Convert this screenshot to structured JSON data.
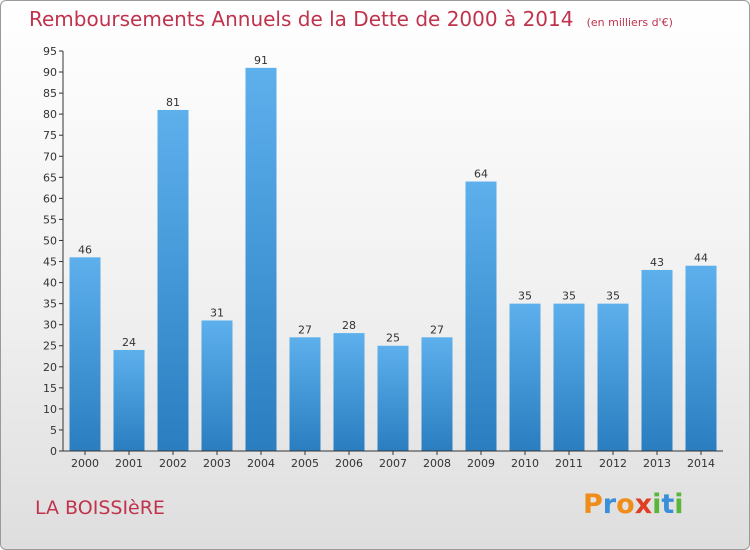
{
  "chart_data": {
    "type": "bar",
    "title": "Remboursements Annuels de la Dette de 2000 à 2014",
    "subtitle": "(en milliers d'€)",
    "xlabel": "",
    "ylabel": "",
    "categories": [
      "2000",
      "2001",
      "2002",
      "2003",
      "2004",
      "2005",
      "2006",
      "2007",
      "2008",
      "2009",
      "2010",
      "2011",
      "2012",
      "2013",
      "2014"
    ],
    "values": [
      46,
      24,
      81,
      31,
      91,
      27,
      28,
      25,
      27,
      64,
      35,
      35,
      35,
      43,
      44
    ],
    "ylim": [
      0,
      95
    ],
    "yticks": [
      0,
      5,
      10,
      15,
      20,
      25,
      30,
      35,
      40,
      45,
      50,
      55,
      60,
      65,
      70,
      75,
      80,
      85,
      90,
      95
    ],
    "grid": false,
    "bar_color": "#3f93d4",
    "show_value_labels": true
  },
  "commune": "LA BOISSIèRE",
  "logo": {
    "letters": [
      "P",
      "r",
      "o",
      "x",
      "i",
      "t",
      "i"
    ],
    "colors": [
      "#f08c1a",
      "#3a8fd8",
      "#f08c1a",
      "#e03e24",
      "#5ab63a",
      "#3a8fd8",
      "#5ab63a"
    ]
  },
  "colors": {
    "title": "#c0334d",
    "axis": "#333333",
    "text": "#333333"
  }
}
